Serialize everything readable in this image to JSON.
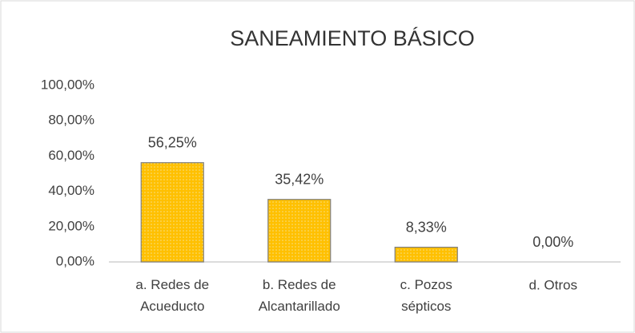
{
  "chart_data": {
    "type": "bar",
    "title": "SANEAMIENTO BÁSICO",
    "categories": [
      "a.  Redes de\nAcueducto",
      "b. Redes de\nAlcantarillado",
      "c. Pozos\nsépticos",
      "d. Otros"
    ],
    "values": [
      56.25,
      35.42,
      8.33,
      0
    ],
    "value_labels": [
      "56,25%",
      "35,42%",
      "8,33%",
      "0,00%"
    ],
    "color": "#ffc000",
    "ylim": [
      0,
      100
    ],
    "yticks": [
      {
        "value": 0,
        "label": "0,00%"
      },
      {
        "value": 20,
        "label": "20,00%"
      },
      {
        "value": 40,
        "label": "40,00%"
      },
      {
        "value": 60,
        "label": "60,00%"
      },
      {
        "value": 80,
        "label": "80,00%"
      },
      {
        "value": 100,
        "label": "100,00%"
      }
    ],
    "grid": false
  }
}
